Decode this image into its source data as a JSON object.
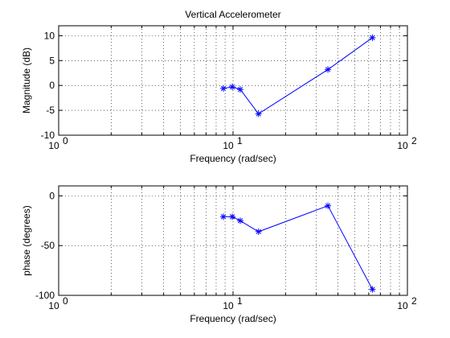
{
  "chart_data": [
    {
      "type": "line",
      "title": "Vertical Accelerometer",
      "xlabel": "Frequency (rad/sec)",
      "ylabel": "Magnitude (dB)",
      "xscale": "log",
      "xlim": [
        1,
        100
      ],
      "ylim": [
        -10,
        12
      ],
      "grid": true,
      "x_ticks": [
        1,
        10,
        100
      ],
      "x_tick_labels": [
        {
          "base": "10",
          "exp": "0"
        },
        {
          "base": "10",
          "exp": "1"
        },
        {
          "base": "10",
          "exp": "2"
        }
      ],
      "y_ticks": [
        -10,
        -5,
        0,
        5,
        10
      ],
      "y_tick_labels": [
        "-10",
        "-5",
        "0",
        "5",
        "10"
      ],
      "color": "#0000ff",
      "marker": "asterisk",
      "x": [
        8.8,
        9.9,
        11.0,
        14.0,
        35.0,
        63.0
      ],
      "y": [
        -0.6,
        -0.3,
        -0.8,
        -5.7,
        3.2,
        9.6
      ]
    },
    {
      "type": "line",
      "title": "",
      "xlabel": "Frequency (rad/sec)",
      "ylabel": "phase (degrees)",
      "xscale": "log",
      "xlim": [
        1,
        100
      ],
      "ylim": [
        -100,
        10
      ],
      "grid": true,
      "x_ticks": [
        1,
        10,
        100
      ],
      "x_tick_labels": [
        {
          "base": "10",
          "exp": "0"
        },
        {
          "base": "10",
          "exp": "1"
        },
        {
          "base": "10",
          "exp": "2"
        }
      ],
      "y_ticks": [
        -100,
        -50,
        0
      ],
      "y_tick_labels": [
        "-100",
        "-50",
        "0"
      ],
      "color": "#0000ff",
      "marker": "asterisk",
      "x": [
        8.8,
        9.9,
        11.0,
        14.0,
        35.0,
        63.0
      ],
      "y": [
        -21,
        -21,
        -25,
        -36,
        -10,
        -94
      ]
    }
  ]
}
